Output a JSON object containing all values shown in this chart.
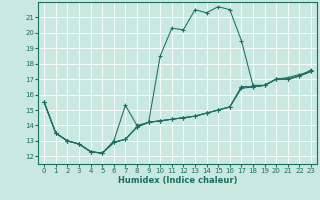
{
  "title": "",
  "xlabel": "Humidex (Indice chaleur)",
  "bg_color": "#c8e8e0",
  "line_color": "#1a6e62",
  "grid_color": "#ffffff",
  "xlim": [
    -0.5,
    23.5
  ],
  "ylim": [
    11.5,
    22.0
  ],
  "xticks": [
    0,
    1,
    2,
    3,
    4,
    5,
    6,
    7,
    8,
    9,
    10,
    11,
    12,
    13,
    14,
    15,
    16,
    17,
    18,
    19,
    20,
    21,
    22,
    23
  ],
  "yticks": [
    12,
    13,
    14,
    15,
    16,
    17,
    18,
    19,
    20,
    21
  ],
  "series": [
    [
      15.5,
      13.5,
      13.0,
      12.8,
      12.3,
      12.2,
      12.9,
      13.1,
      13.9,
      14.2,
      14.3,
      14.4,
      14.5,
      14.6,
      14.8,
      15.0,
      15.2,
      16.5,
      16.5,
      16.6,
      17.0,
      17.0,
      17.2,
      17.5
    ],
    [
      15.5,
      13.5,
      13.0,
      12.8,
      12.3,
      12.2,
      13.0,
      15.3,
      14.0,
      14.2,
      18.5,
      20.3,
      20.2,
      21.5,
      21.3,
      21.7,
      21.5,
      19.5,
      16.6,
      16.6,
      17.0,
      17.0,
      17.2,
      17.5
    ],
    [
      15.5,
      13.5,
      13.0,
      12.8,
      12.3,
      12.2,
      12.9,
      13.1,
      13.9,
      14.2,
      14.3,
      14.4,
      14.5,
      14.6,
      14.8,
      15.0,
      15.2,
      16.4,
      16.5,
      16.6,
      17.0,
      17.1,
      17.3,
      17.5
    ],
    [
      15.5,
      13.5,
      13.0,
      12.8,
      12.3,
      12.2,
      12.9,
      13.1,
      13.9,
      14.2,
      14.3,
      14.4,
      14.5,
      14.6,
      14.8,
      15.0,
      15.2,
      16.5,
      16.5,
      16.6,
      17.0,
      17.0,
      17.2,
      17.6
    ]
  ]
}
